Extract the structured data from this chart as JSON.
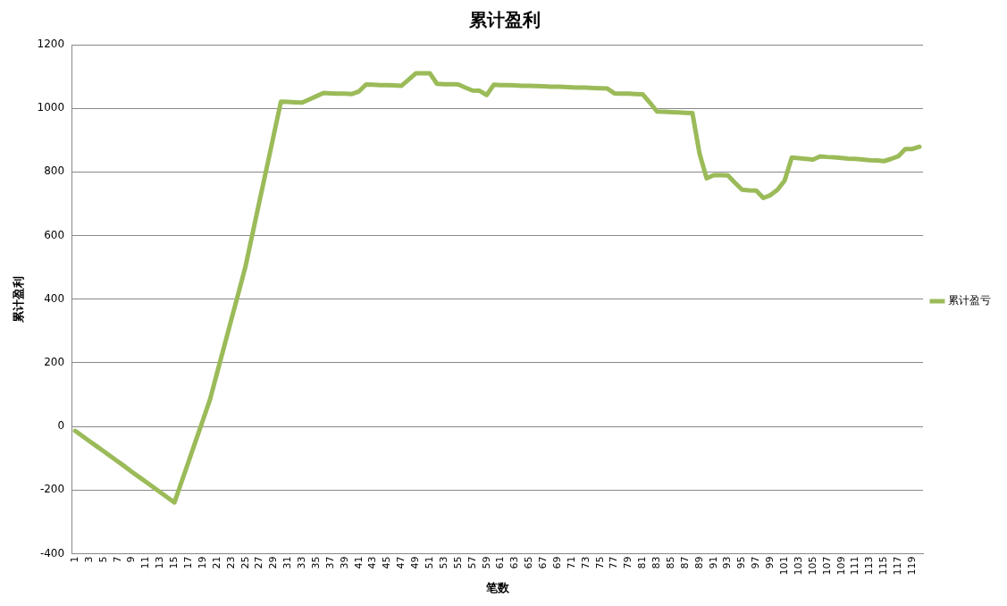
{
  "chart_data": {
    "type": "line",
    "title": "累计盈利",
    "xlabel": "笔数",
    "ylabel": "累计盈利",
    "categories": [
      "1",
      null,
      "3",
      null,
      "5",
      null,
      "7",
      null,
      "9",
      null,
      "11",
      null,
      "13",
      null,
      "15",
      null,
      "17",
      null,
      "19",
      null,
      "21",
      null,
      "23",
      null,
      "25",
      null,
      "27",
      null,
      "29",
      null,
      "31",
      null,
      "33",
      null,
      "35",
      null,
      "37",
      null,
      "39",
      null,
      "41",
      null,
      "43",
      null,
      "45",
      null,
      "47",
      null,
      "49",
      null,
      "51",
      null,
      "53",
      null,
      "55",
      null,
      "57",
      null,
      "59",
      null,
      "61",
      null,
      "63",
      null,
      "65",
      null,
      "67",
      null,
      "69",
      null,
      "71",
      null,
      "73",
      null,
      "75",
      null,
      "77",
      null,
      "79",
      null,
      "81",
      null,
      "83",
      null,
      "85",
      null,
      "87",
      null,
      "89",
      null,
      "91",
      null,
      "93",
      null,
      "95",
      null,
      "97",
      null,
      "99",
      null,
      "101",
      null,
      "103",
      null,
      "105",
      null,
      "107",
      null,
      "109",
      null,
      "111",
      null,
      "113",
      null,
      "115",
      null,
      "117",
      null,
      "119",
      null
    ],
    "series": [
      {
        "name": "累计盈亏",
        "color": "#9bbb59",
        "values": [
          -14,
          -30,
          -46,
          -62,
          -78,
          -94,
          -110,
          -126,
          -143,
          -159,
          -175,
          -191,
          -207,
          -223,
          -239,
          -174,
          -110,
          -45,
          19,
          84,
          168,
          251,
          335,
          418,
          502,
          606,
          710,
          813,
          917,
          1021,
          1020,
          1019,
          1018,
          1028,
          1038,
          1048,
          1047,
          1046,
          1046,
          1045,
          1053,
          1075,
          1074,
          1073,
          1073,
          1072,
          1071,
          1090,
          1110,
          1110,
          1110,
          1077,
          1076,
          1076,
          1075,
          1065,
          1056,
          1055,
          1042,
          1074,
          1073,
          1073,
          1072,
          1071,
          1071,
          1070,
          1069,
          1068,
          1068,
          1067,
          1066,
          1065,
          1065,
          1064,
          1063,
          1062,
          1047,
          1046,
          1046,
          1045,
          1044,
          1018,
          990,
          989,
          988,
          987,
          986,
          985,
          858,
          780,
          790,
          790,
          789,
          766,
          744,
          742,
          741,
          718,
          727,
          744,
          773,
          845,
          843,
          841,
          839,
          849,
          847,
          846,
          844,
          842,
          841,
          839,
          837,
          836,
          834,
          841,
          849,
          872,
          872,
          879
        ]
      }
    ],
    "ylim": [
      -400,
      1200
    ],
    "yticks": [
      -400,
      -200,
      0,
      200,
      400,
      600,
      800,
      1000,
      1200
    ],
    "grid": "y",
    "legend": "right",
    "marker": "none",
    "line_style": "solid"
  }
}
